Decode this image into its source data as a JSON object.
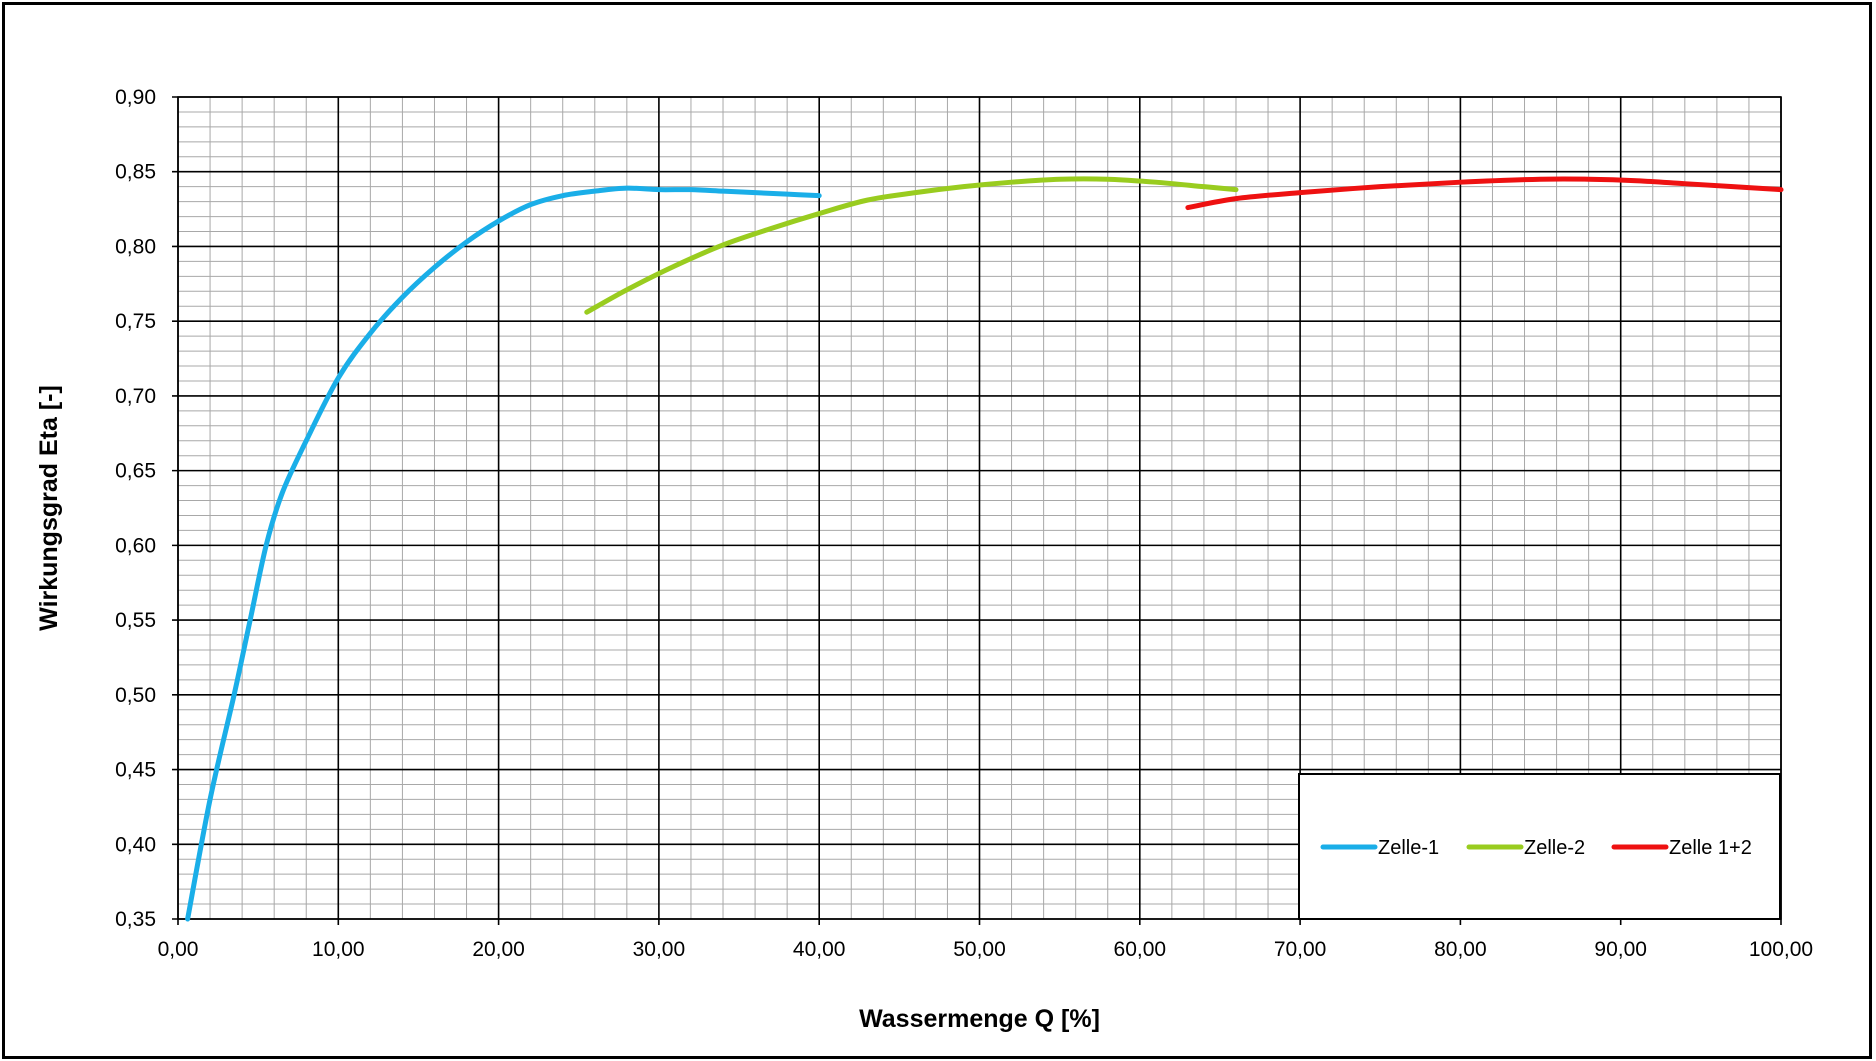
{
  "chart_data": {
    "type": "line",
    "xlabel": "Wassermenge Q [%]",
    "ylabel": "Wirkungsgrad Eta [-]",
    "xlim": [
      0,
      100
    ],
    "ylim": [
      0.35,
      0.9
    ],
    "x_major_step": 10,
    "x_minor_step": 2,
    "y_major_step": 0.05,
    "y_minor_step": 0.01,
    "grid": true,
    "legend_position": "bottom-right",
    "x_tick_labels": [
      "0,00",
      "10,00",
      "20,00",
      "30,00",
      "40,00",
      "50,00",
      "60,00",
      "70,00",
      "80,00",
      "90,00",
      "100,00"
    ],
    "y_tick_labels": [
      "0,35",
      "0,40",
      "0,45",
      "0,50",
      "0,55",
      "0,60",
      "0,65",
      "0,70",
      "0,75",
      "0,80",
      "0,85",
      "0,90"
    ],
    "series": [
      {
        "name": "Zelle-1",
        "color": "#1AAEE8",
        "x": [
          0.6,
          2.0,
          3.5,
          4.5,
          5.5,
          6.5,
          8.0,
          10.0,
          12.0,
          14.0,
          16.0,
          18.0,
          20.0,
          22.0,
          24.0,
          26.0,
          28.0,
          30.0,
          32.0,
          34.0,
          36.0,
          38.0,
          40.0
        ],
        "y": [
          0.35,
          0.43,
          0.5,
          0.55,
          0.6,
          0.635,
          0.67,
          0.712,
          0.742,
          0.766,
          0.786,
          0.803,
          0.817,
          0.828,
          0.834,
          0.837,
          0.839,
          0.838,
          0.838,
          0.837,
          0.836,
          0.835,
          0.834
        ]
      },
      {
        "name": "Zelle-2",
        "color": "#99CC1F",
        "x": [
          25.5,
          28.0,
          31.0,
          34.0,
          37.0,
          40.0,
          43.0,
          46.0,
          49.0,
          52.0,
          55.0,
          58.0,
          61.0,
          64.0,
          66.0
        ],
        "y": [
          0.756,
          0.771,
          0.787,
          0.801,
          0.812,
          0.822,
          0.831,
          0.836,
          0.84,
          0.843,
          0.845,
          0.845,
          0.843,
          0.84,
          0.838
        ]
      },
      {
        "name": "Zelle 1+2",
        "color": "#EE1111",
        "x": [
          63.0,
          66.0,
          70.0,
          75.0,
          80.0,
          85.0,
          88.0,
          91.0,
          94.0,
          97.0,
          100.0
        ],
        "y": [
          0.826,
          0.832,
          0.836,
          0.84,
          0.843,
          0.845,
          0.845,
          0.844,
          0.842,
          0.84,
          0.838
        ]
      }
    ]
  }
}
